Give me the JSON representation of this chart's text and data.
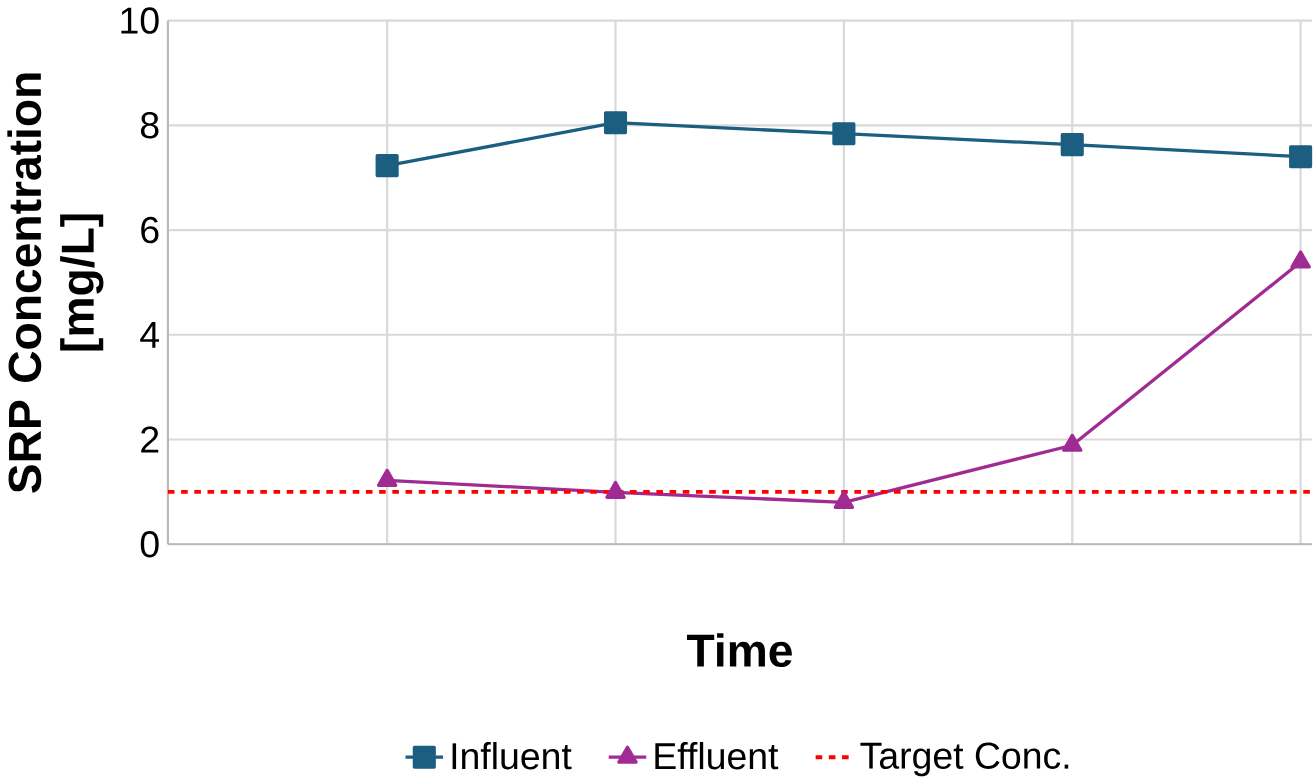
{
  "chart_data": {
    "type": "line",
    "xlabel": "Time",
    "ylabel": "SRP Concentration [mg/L]",
    "categories": [
      null,
      null,
      null,
      null,
      null
    ],
    "series": [
      {
        "name": "Influent",
        "color": "#1b5e80",
        "marker": "square",
        "values": [
          7.23,
          8.05,
          7.84,
          7.63,
          7.4
        ]
      },
      {
        "name": "Effluent",
        "color": "#a02b93",
        "marker": "triangle",
        "values": [
          1.22,
          0.99,
          0.8,
          1.89,
          5.39
        ]
      }
    ],
    "ref_lines": [
      {
        "axis": "y",
        "value": 1,
        "label": "Target Conc.",
        "color": "#ff0000",
        "line_style": "dashed"
      }
    ],
    "ylim": [
      0,
      10
    ],
    "yticks": [
      0,
      2,
      4,
      6,
      8,
      10
    ],
    "grid": true,
    "legend": "bottom",
    "line_style": "solid"
  }
}
